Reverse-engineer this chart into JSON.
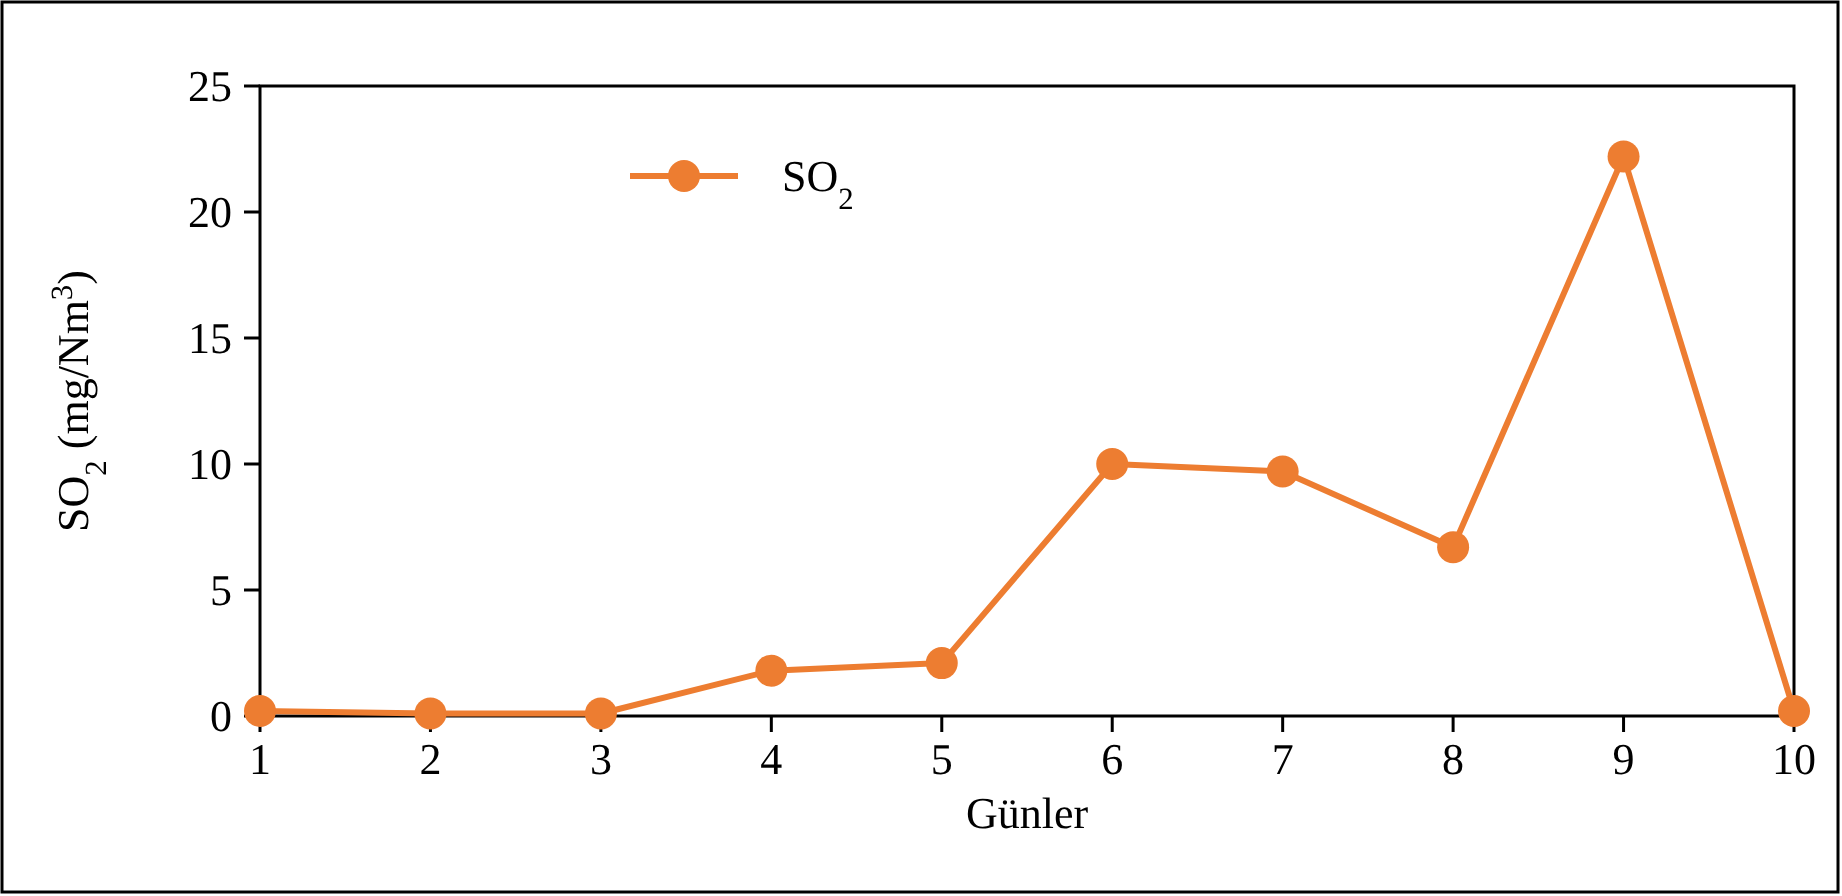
{
  "chart_data": {
    "type": "line",
    "xlabel": "Günler",
    "ylabel": "SO$_{2}$ (mg/Nm$^{3}$)",
    "x": [
      1,
      2,
      3,
      4,
      5,
      6,
      7,
      8,
      9,
      10
    ],
    "series": [
      {
        "name": "SO$_{2}$",
        "color": "#ed7d31",
        "values": [
          0.2,
          0.1,
          0.1,
          1.8,
          2.1,
          10.0,
          9.7,
          6.7,
          22.2,
          0.2
        ]
      }
    ],
    "xlim": [
      1,
      10
    ],
    "xticks": [
      1,
      2,
      3,
      4,
      5,
      6,
      7,
      8,
      9,
      10
    ],
    "ylim": [
      0,
      25
    ],
    "yticks": [
      0,
      5,
      10,
      15,
      20,
      25
    ],
    "marker": "circle",
    "line_style": "solid",
    "legend": "top left",
    "grid": false
  }
}
